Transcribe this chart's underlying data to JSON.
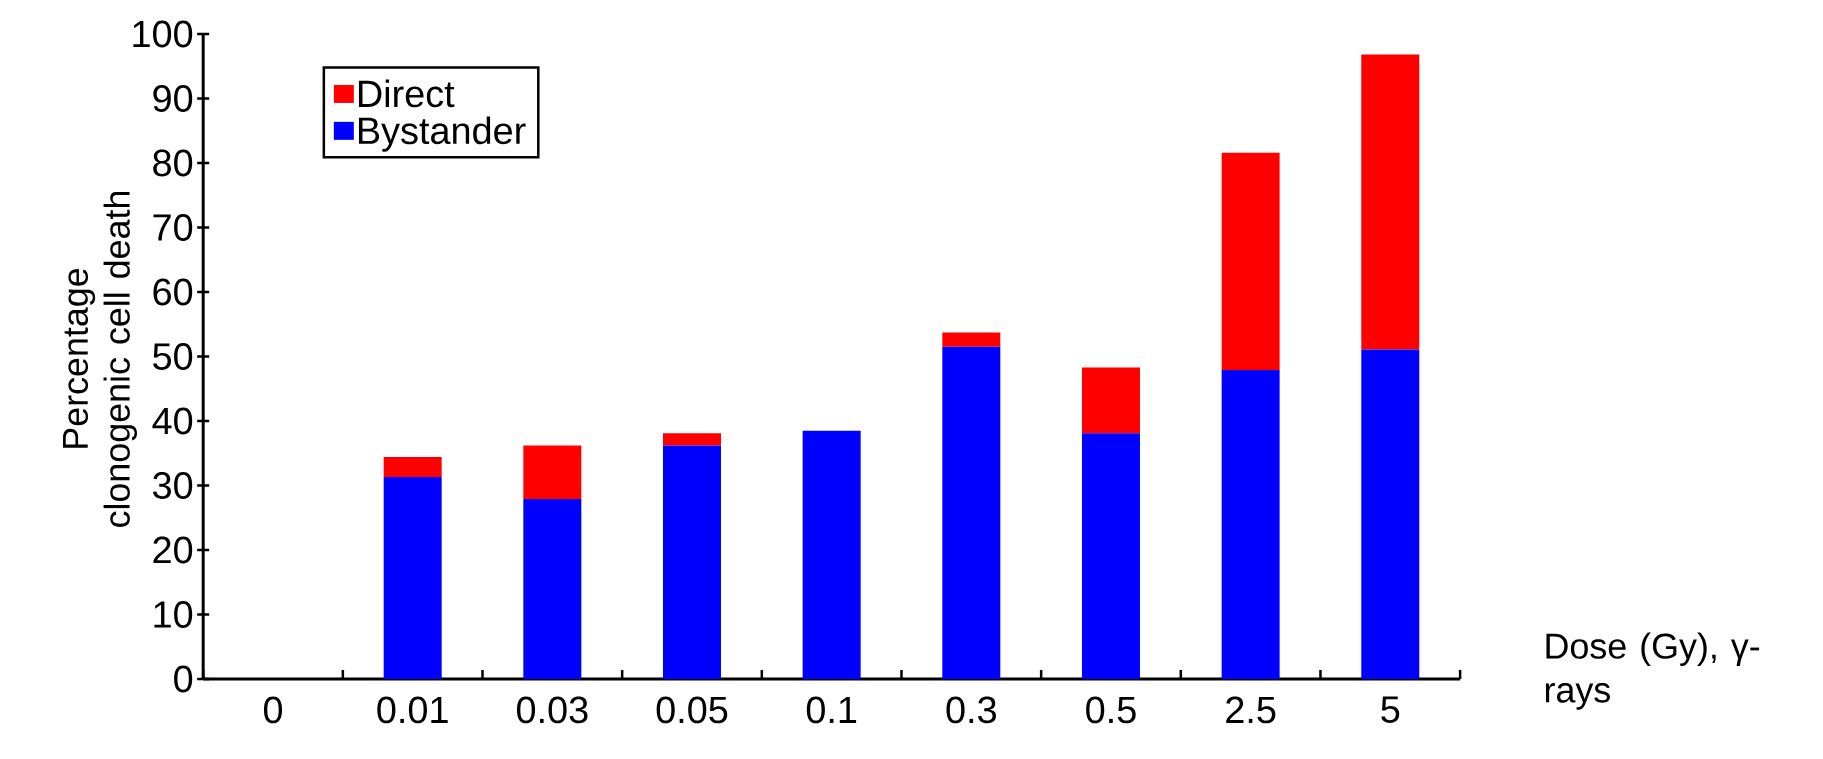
{
  "chart_data": {
    "type": "bar",
    "stacked": true,
    "xlabel": "Dose (Gy), γ-rays",
    "ylabel": "Percentage clonogenic cell death",
    "categories": [
      "0",
      "0.01",
      "0.03",
      "0.05",
      "0.1",
      "0.3",
      "0.5",
      "2.5",
      "5"
    ],
    "series": [
      {
        "name": "Bystander",
        "color": "#0000ff",
        "values": [
          null,
          31.3,
          27.9,
          36.2,
          38.5,
          51.5,
          38.1,
          47.9,
          51.1
        ]
      },
      {
        "name": "Direct",
        "color": "#ff0000",
        "values": [
          null,
          3.1,
          8.3,
          1.9,
          0,
          2.2,
          10.2,
          33.7,
          45.7
        ]
      }
    ],
    "ylim": [
      0,
      100
    ],
    "yticks": [
      0,
      10,
      20,
      30,
      40,
      50,
      60,
      70,
      80,
      90,
      100
    ],
    "legend": "top left"
  }
}
